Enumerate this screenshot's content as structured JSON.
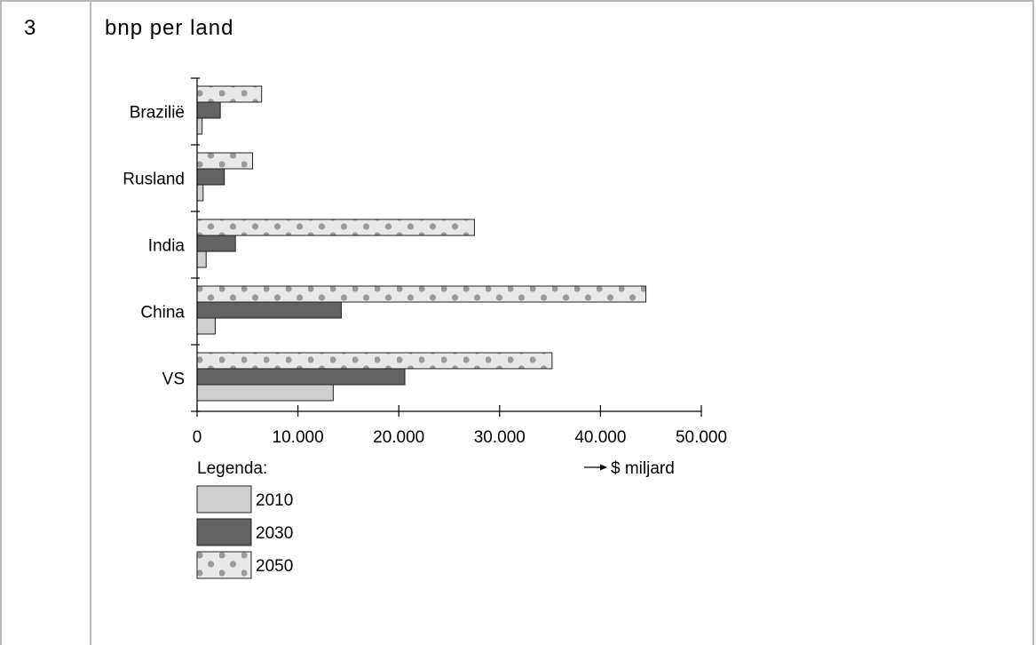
{
  "question_number": "3",
  "title": "bnp per land",
  "chart_data": {
    "type": "bar",
    "orientation": "horizontal",
    "categories": [
      "Brazilië",
      "Rusland",
      "India",
      "China",
      "VS"
    ],
    "series": [
      {
        "name": "2010",
        "values": [
          500,
          600,
          900,
          1800,
          13500
        ]
      },
      {
        "name": "2030",
        "values": [
          2300,
          2700,
          3800,
          14300,
          20600
        ]
      },
      {
        "name": "2050",
        "values": [
          6400,
          5500,
          27500,
          44500,
          35200
        ]
      }
    ],
    "xlim": [
      0,
      50000
    ],
    "x_ticks": [
      "0",
      "10.000",
      "20.000",
      "30.000",
      "40.000",
      "50.000"
    ],
    "xlabel": "$ miljard",
    "legend_title": "Legenda:",
    "colors": {
      "2010": "#cfcfcf",
      "2030": "#636363",
      "2050": "#e8e8e8",
      "dots": "#9a9a9a"
    }
  }
}
